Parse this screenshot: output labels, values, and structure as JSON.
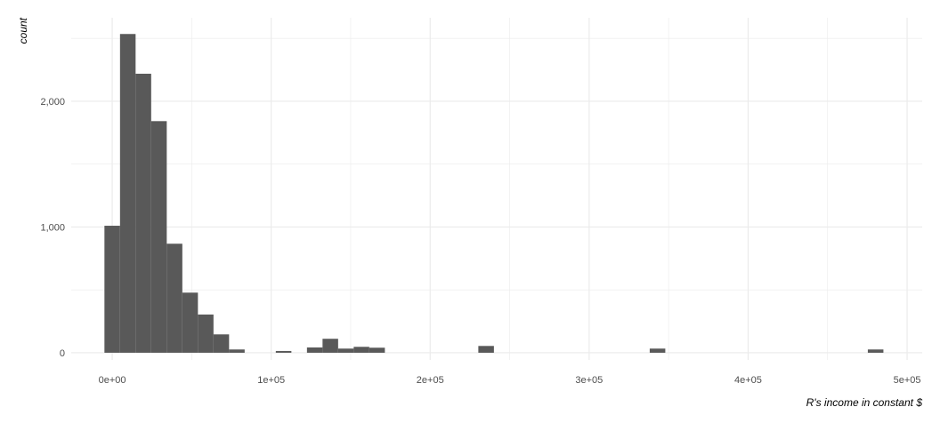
{
  "chart_data": {
    "type": "bar",
    "subtype": "histogram",
    "title": "",
    "xlabel": "R's income in constant $",
    "ylabel": "count",
    "bin_width": 9800,
    "bins": [
      {
        "center": 0,
        "count": 1010
      },
      {
        "center": 9800,
        "count": 2535
      },
      {
        "center": 19600,
        "count": 2219
      },
      {
        "center": 29400,
        "count": 1842
      },
      {
        "center": 39200,
        "count": 867
      },
      {
        "center": 49000,
        "count": 478
      },
      {
        "center": 58800,
        "count": 304
      },
      {
        "center": 68600,
        "count": 146
      },
      {
        "center": 78400,
        "count": 26
      },
      {
        "center": 107800,
        "count": 14
      },
      {
        "center": 127400,
        "count": 42
      },
      {
        "center": 137200,
        "count": 111
      },
      {
        "center": 147000,
        "count": 33
      },
      {
        "center": 156800,
        "count": 47
      },
      {
        "center": 166600,
        "count": 40
      },
      {
        "center": 235200,
        "count": 54
      },
      {
        "center": 343000,
        "count": 33
      },
      {
        "center": 480200,
        "count": 26
      }
    ],
    "xlim": [
      -25800,
      509500
    ],
    "ylim": [
      -57,
      2664
    ],
    "x_ticks": [
      0,
      100000,
      200000,
      300000,
      400000,
      500000
    ],
    "x_tick_labels": [
      "0e+00",
      "1e+05",
      "2e+05",
      "3e+05",
      "4e+05",
      "5e+05"
    ],
    "y_ticks": [
      0,
      1000,
      2000
    ],
    "y_tick_labels": [
      "0",
      "1,000",
      "2,000"
    ],
    "grid": true,
    "legend": "none",
    "colors": {
      "bar": "#595959",
      "grid": "#ebebeb",
      "background": "#ffffff"
    }
  }
}
